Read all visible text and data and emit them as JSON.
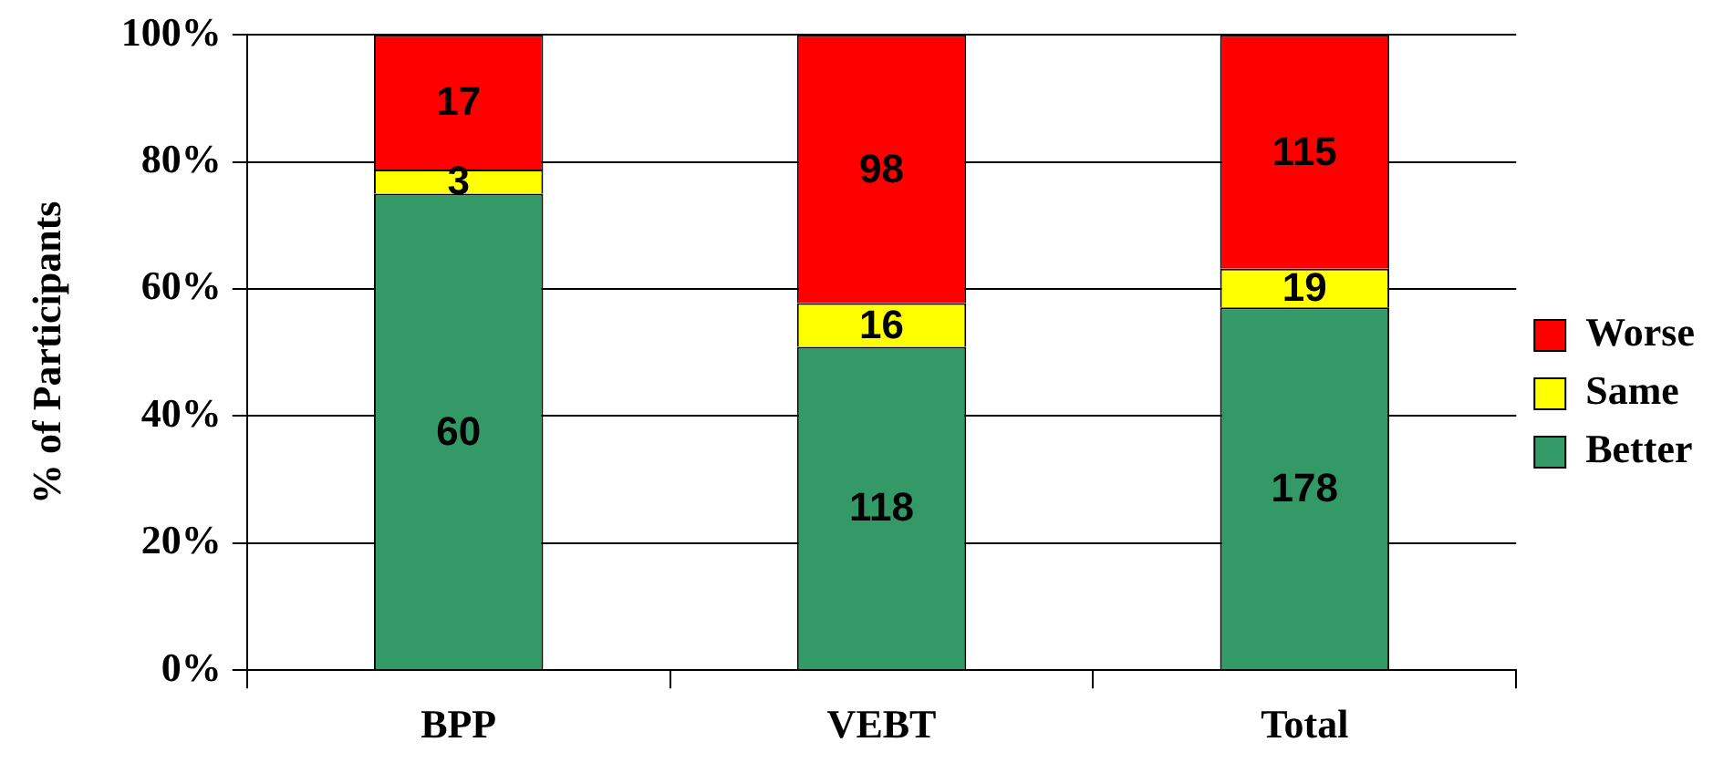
{
  "chart_data": {
    "type": "bar",
    "ylabel": "% of Participants",
    "categories": [
      "BPP",
      "VEBT",
      "Total"
    ],
    "stacked": true,
    "series": [
      {
        "name": "Better",
        "color": "#339966",
        "values": [
          75.0,
          50.9,
          57.1
        ]
      },
      {
        "name": "Same",
        "color": "#ffff00",
        "values": [
          3.8,
          6.9,
          6.1
        ]
      },
      {
        "name": "Worse",
        "color": "#ff0000",
        "values": [
          21.2,
          42.2,
          36.8
        ]
      }
    ],
    "annotations": [
      "60",
      "118",
      "178",
      "3",
      "16",
      "19",
      "17",
      "98",
      "115"
    ],
    "ylim": [
      0,
      100
    ],
    "yticks": [
      {
        "value": 0,
        "label": "0%"
      },
      {
        "value": 20,
        "label": "20%"
      },
      {
        "value": 40,
        "label": "40%"
      },
      {
        "value": 60,
        "label": "60%"
      },
      {
        "value": 80,
        "label": "80%"
      },
      {
        "value": 100,
        "label": "100%"
      }
    ],
    "grid": "y",
    "legend": "right"
  }
}
